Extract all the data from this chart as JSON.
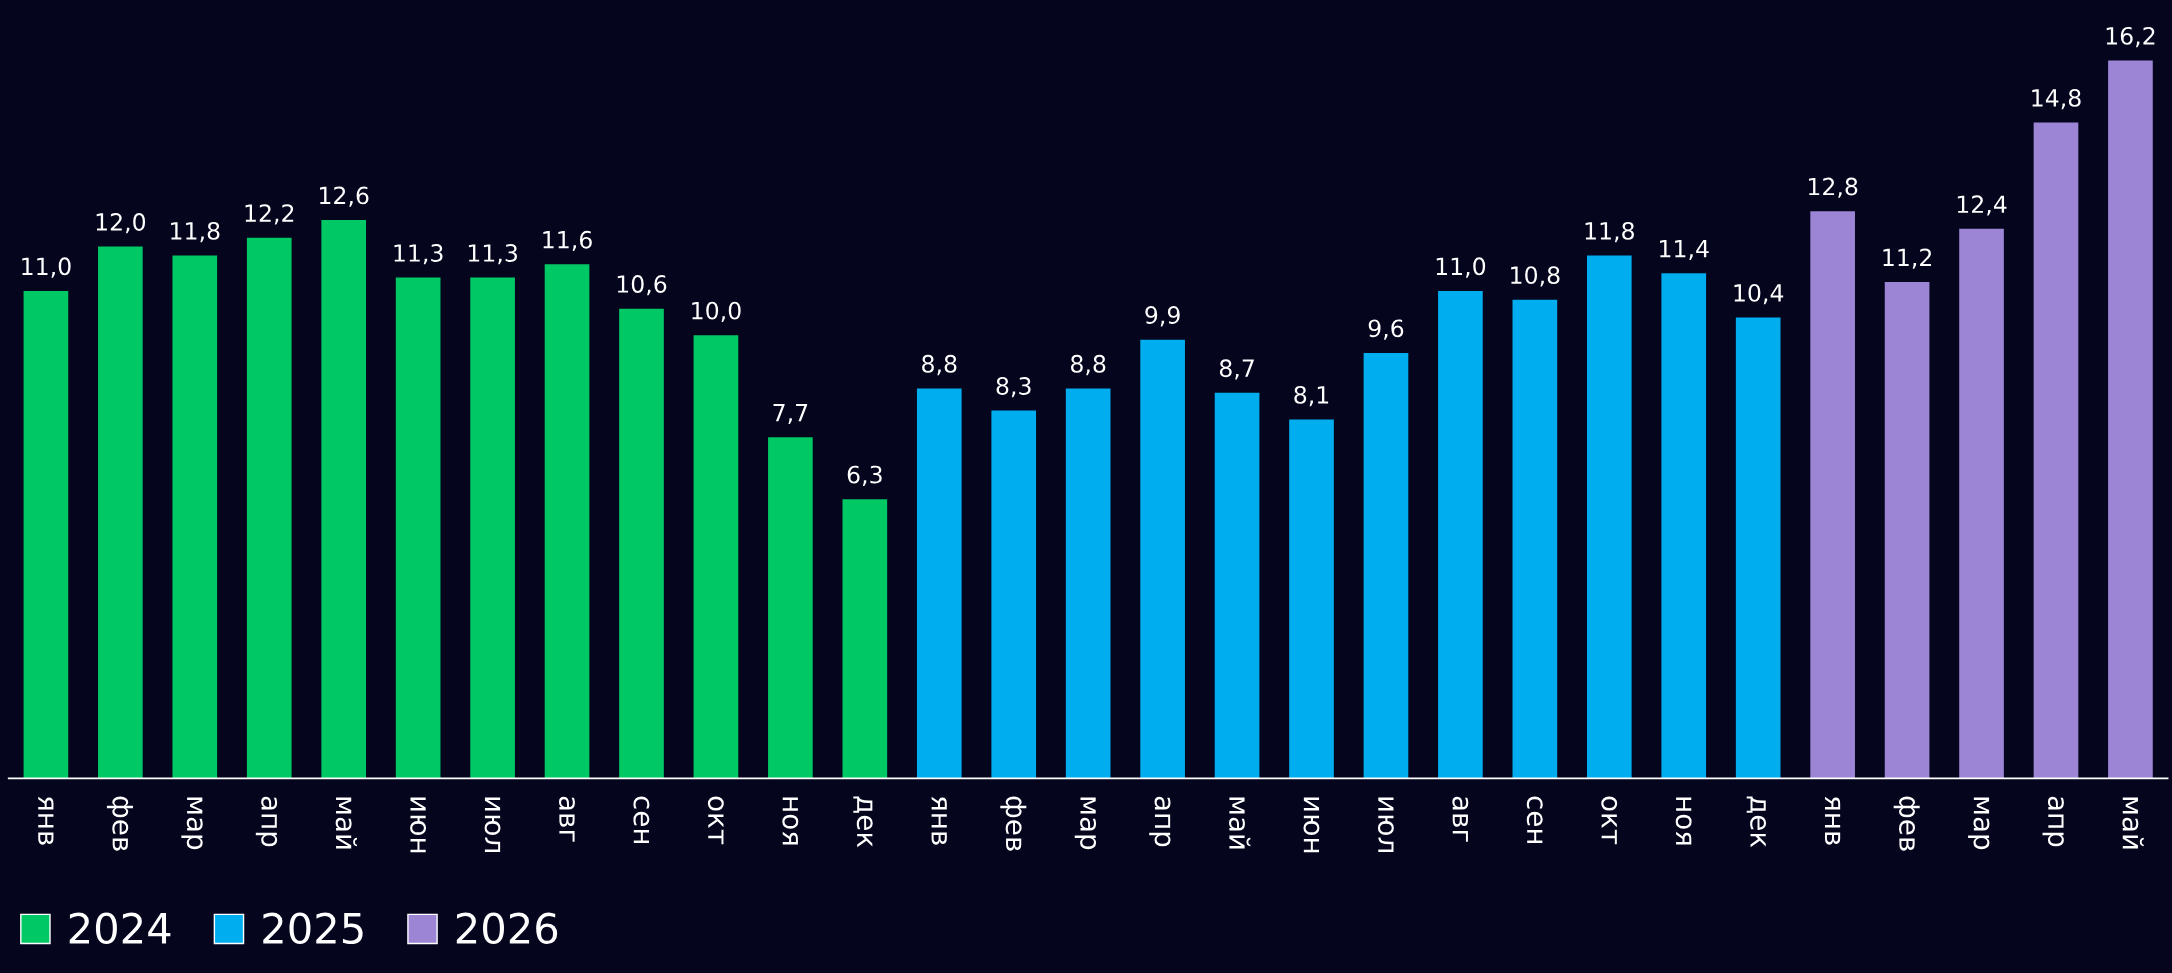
{
  "chart_data": {
    "type": "bar",
    "categories": [
      "янв",
      "фев",
      "мар",
      "апр",
      "май",
      "июн",
      "июл",
      "авг",
      "сен",
      "окт",
      "ноя",
      "дек",
      "янв",
      "фев",
      "мар",
      "апр",
      "май",
      "июн",
      "июл",
      "авг",
      "сен",
      "окт",
      "ноя",
      "дек",
      "янв",
      "фев",
      "мар",
      "апр",
      "май"
    ],
    "series": [
      {
        "name": "2024",
        "color": "#00c864",
        "values": [
          11.0,
          12.0,
          11.8,
          12.2,
          12.6,
          11.3,
          11.3,
          11.6,
          10.6,
          10.0,
          7.7,
          6.3,
          null,
          null,
          null,
          null,
          null,
          null,
          null,
          null,
          null,
          null,
          null,
          null,
          null,
          null,
          null,
          null,
          null
        ],
        "value_labels": [
          "11,0",
          "12,0",
          "11,8",
          "12,2",
          "12,6",
          "11,3",
          "11,3",
          "11,6",
          "10,6",
          "10,0",
          "7,7",
          "6,3",
          null,
          null,
          null,
          null,
          null,
          null,
          null,
          null,
          null,
          null,
          null,
          null,
          null,
          null,
          null,
          null,
          null
        ]
      },
      {
        "name": "2025",
        "color": "#00aeef",
        "values": [
          null,
          null,
          null,
          null,
          null,
          null,
          null,
          null,
          null,
          null,
          null,
          null,
          8.8,
          8.3,
          8.8,
          9.9,
          8.7,
          8.1,
          9.6,
          11.0,
          10.8,
          11.8,
          11.4,
          10.4,
          null,
          null,
          null,
          null,
          null
        ],
        "value_labels": [
          null,
          null,
          null,
          null,
          null,
          null,
          null,
          null,
          null,
          null,
          null,
          null,
          "8,8",
          "8,3",
          "8,8",
          "9,9",
          "8,7",
          "8,1",
          "9,6",
          "11,0",
          "10,8",
          "11,8",
          "11,4",
          "10,4",
          null,
          null,
          null,
          null,
          null
        ]
      },
      {
        "name": "2026",
        "color": "#9b85d4",
        "values": [
          null,
          null,
          null,
          null,
          null,
          null,
          null,
          null,
          null,
          null,
          null,
          null,
          null,
          null,
          null,
          null,
          null,
          null,
          null,
          null,
          null,
          null,
          null,
          null,
          12.8,
          11.2,
          12.4,
          14.8,
          16.2
        ],
        "value_labels": [
          null,
          null,
          null,
          null,
          null,
          null,
          null,
          null,
          null,
          null,
          null,
          null,
          null,
          null,
          null,
          null,
          null,
          null,
          null,
          null,
          null,
          null,
          null,
          null,
          "12,8",
          "11,2",
          "12,4",
          "14,8",
          "16,2"
        ]
      }
    ],
    "legend": "bottom",
    "grid": false
  }
}
